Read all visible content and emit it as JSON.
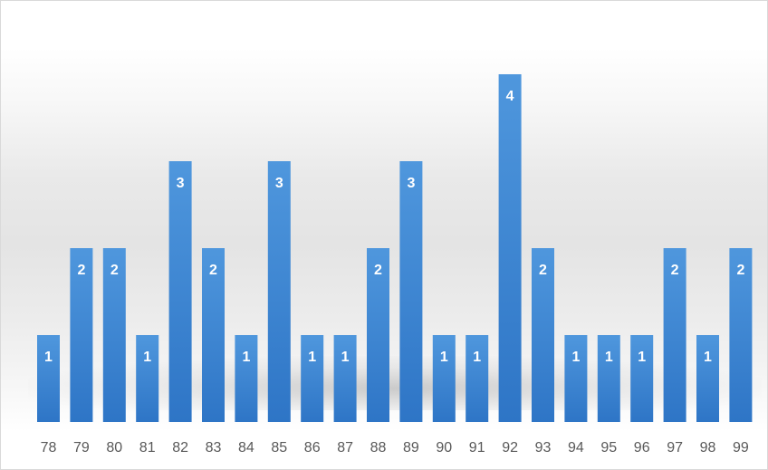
{
  "chart_data": {
    "type": "bar",
    "categories": [
      "78",
      "79",
      "80",
      "81",
      "82",
      "83",
      "84",
      "85",
      "86",
      "87",
      "88",
      "89",
      "90",
      "91",
      "92",
      "93",
      "94",
      "95",
      "96",
      "97",
      "98",
      "99"
    ],
    "values": [
      1,
      2,
      2,
      1,
      3,
      2,
      1,
      3,
      1,
      1,
      2,
      3,
      1,
      1,
      4,
      2,
      1,
      1,
      1,
      2,
      1,
      2
    ],
    "title": "",
    "xlabel": "",
    "ylabel": "",
    "ylim": [
      0,
      4
    ],
    "data_labels": true,
    "grid": false,
    "legend": "none",
    "colors": {
      "bar_top": "#4f97dd",
      "bar_bottom": "#2e75c6",
      "label": "#ffffff",
      "tick": "#595959",
      "border": "#d9d9d9"
    }
  }
}
